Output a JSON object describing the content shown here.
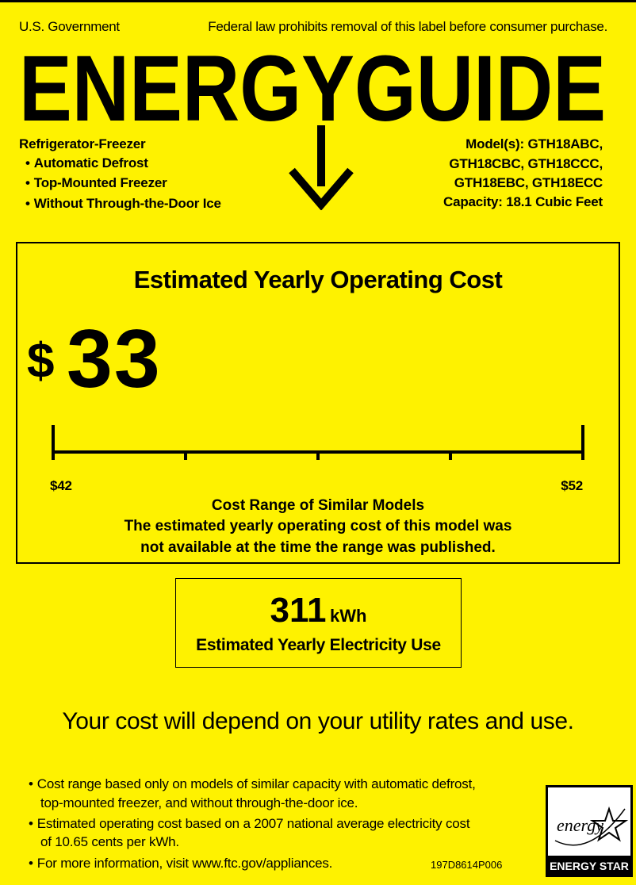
{
  "header": {
    "left": "U.S. Government",
    "right": "Federal law prohibits removal of this label before consumer purchase.",
    "title": "ENERGYGUIDE"
  },
  "product": {
    "type": "Refrigerator-Freezer",
    "features": [
      "Automatic Defrost",
      "Top-Mounted Freezer",
      "Without Through-the-Door Ice"
    ]
  },
  "model": {
    "lines": [
      "Model(s):  GTH18ABC,",
      "GTH18CBC, GTH18CCC,",
      "GTH18EBC, GTH18ECC"
    ],
    "capacity": "Capacity: 18.1 Cubic Feet"
  },
  "cost": {
    "heading": "Estimated Yearly Operating Cost",
    "currency": "$",
    "amount": "33",
    "range_low": "$42",
    "range_high": "$52",
    "range_title": "Cost Range of Similar Models",
    "note": [
      "The estimated yearly operating cost of this model was",
      "not available at the time the range was published."
    ]
  },
  "energy": {
    "amount": "311",
    "unit": "kWh",
    "label": "Estimated Yearly Electricity Use"
  },
  "tagline": "Your cost will depend on your utility rates and use.",
  "footnotes": [
    [
      "Cost range based only on models of similar capacity with automatic defrost,",
      "top-mounted freezer, and without through-the-door ice."
    ],
    [
      "Estimated operating cost based on a 2007 national average electricity cost",
      "of 10.65 cents per kWh."
    ],
    [
      "For more information, visit www.ftc.gov/appliances."
    ]
  ],
  "code": "197D8614P006",
  "logo": {
    "script": "energy",
    "name": "ENERGY STAR"
  }
}
